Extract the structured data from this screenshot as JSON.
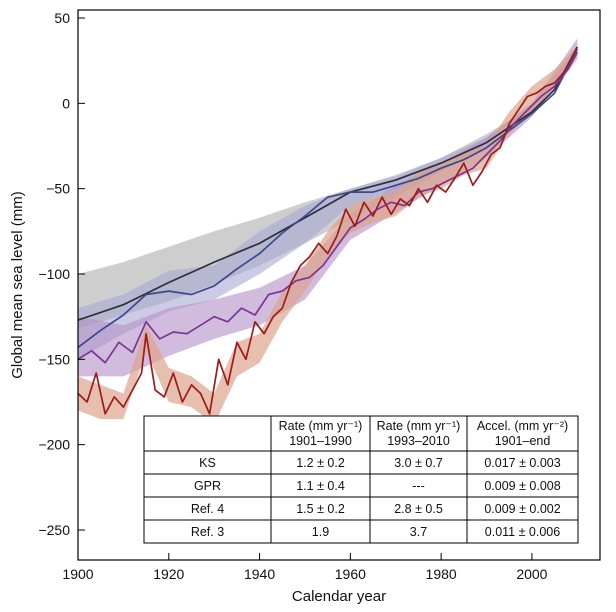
{
  "chart_data": {
    "type": "line",
    "title": "",
    "xlabel": "Calendar year",
    "ylabel": "Global mean sea level (mm)",
    "xlim": [
      1900,
      2015
    ],
    "ylim": [
      -270,
      50
    ],
    "xticks": [
      1900,
      1920,
      1940,
      1960,
      1980,
      2000
    ],
    "xtick_labels": [
      "1900",
      "1920",
      "1940",
      "1960",
      "1980",
      "2000"
    ],
    "yticks": [
      50,
      0,
      -50,
      -100,
      -150,
      -200,
      -250
    ],
    "ytick_labels": [
      "50",
      "0",
      "−50",
      "−100",
      "−150",
      "−200",
      "−250"
    ],
    "colors": {
      "gray_band": "#bdbdbd",
      "blue_band": "#a9a9d6",
      "purple_band": "#b48fc6",
      "red_band": "#dca48c",
      "black_line": "#2f2f3a",
      "blue_line": "#3b4a8c",
      "purple_line": "#7a3597",
      "red_line": "#9e1b1b",
      "frame": "#000000"
    },
    "series": [
      {
        "name": "Ref. 3 (gray band)",
        "x": [
          1900,
          1910,
          1920,
          1930,
          1940,
          1950,
          1960,
          1970,
          1980,
          1990,
          2000,
          2010
        ],
        "upper": [
          -100,
          -93,
          -84,
          -75,
          -67,
          -58,
          -50,
          -43,
          -32,
          -18,
          -2,
          32
        ],
        "lower": [
          -132,
          -124,
          -116,
          -106,
          -95,
          -82,
          -68,
          -55,
          -40,
          -24,
          -6,
          28
        ]
      },
      {
        "name": "Ref. 4 (blue band)",
        "x": [
          1900,
          1910,
          1920,
          1930,
          1940,
          1950,
          1960,
          1970,
          1980,
          1990,
          2000,
          2010
        ],
        "upper": [
          -120,
          -112,
          -98,
          -95,
          -75,
          -60,
          -50,
          -42,
          -32,
          -20,
          0,
          34
        ],
        "lower": [
          -150,
          -135,
          -122,
          -115,
          -100,
          -82,
          -60,
          -50,
          -40,
          -26,
          -6,
          28
        ]
      },
      {
        "name": "GPR (purple band)",
        "x": [
          1900,
          1910,
          1920,
          1930,
          1940,
          1950,
          1960,
          1970,
          1980,
          1990,
          2000,
          2010
        ],
        "upper": [
          -125,
          -130,
          -120,
          -115,
          -108,
          -95,
          -65,
          -48,
          -35,
          -20,
          0,
          38
        ],
        "lower": [
          -160,
          -160,
          -148,
          -138,
          -130,
          -115,
          -80,
          -64,
          -48,
          -32,
          -8,
          26
        ]
      },
      {
        "name": "KS (red band)",
        "x": [
          1900,
          1905,
          1910,
          1915,
          1920,
          1925,
          1930,
          1935,
          1940,
          1945,
          1950,
          1955,
          1960,
          1965,
          1970,
          1975,
          1980,
          1985,
          1990,
          1995,
          2000,
          2005,
          2010
        ],
        "upper": [
          -160,
          -165,
          -170,
          -130,
          -155,
          -160,
          -170,
          -140,
          -135,
          -110,
          -95,
          -75,
          -60,
          -55,
          -52,
          -40,
          -35,
          -28,
          -25,
          -5,
          10,
          20,
          34
        ],
        "lower": [
          -180,
          -185,
          -185,
          -145,
          -175,
          -178,
          -188,
          -160,
          -152,
          -128,
          -110,
          -90,
          -76,
          -70,
          -66,
          -55,
          -50,
          -42,
          -38,
          -18,
          -5,
          8,
          28
        ]
      },
      {
        "name": "Ref. 3 (black line)",
        "x": [
          1900,
          1910,
          1920,
          1930,
          1940,
          1950,
          1960,
          1970,
          1980,
          1990,
          2000,
          2005,
          2010
        ],
        "y": [
          -127,
          -118,
          -105,
          -93,
          -82,
          -67,
          -52,
          -45,
          -35,
          -23,
          -5,
          8,
          33
        ]
      },
      {
        "name": "Ref. 4 (blue line)",
        "x": [
          1900,
          1905,
          1910,
          1915,
          1920,
          1925,
          1930,
          1935,
          1940,
          1945,
          1950,
          1955,
          1960,
          1965,
          1970,
          1975,
          1980,
          1985,
          1990,
          1995,
          2000,
          2005,
          2010
        ],
        "y": [
          -143,
          -133,
          -124,
          -112,
          -110,
          -112,
          -107,
          -97,
          -88,
          -76,
          -66,
          -55,
          -52,
          -52,
          -48,
          -44,
          -38,
          -33,
          -26,
          -16,
          -6,
          6,
          32
        ]
      },
      {
        "name": "GPR (purple line)",
        "x": [
          1900,
          1903,
          1906,
          1909,
          1912,
          1915,
          1918,
          1921,
          1924,
          1927,
          1930,
          1933,
          1936,
          1939,
          1942,
          1945,
          1948,
          1951,
          1954,
          1957,
          1960,
          1963,
          1966,
          1969,
          1972,
          1975,
          1978,
          1981,
          1984,
          1987,
          1990,
          1993,
          1996,
          1999,
          2002,
          2005,
          2008,
          2010
        ],
        "y": [
          -150,
          -145,
          -152,
          -140,
          -146,
          -128,
          -138,
          -134,
          -135,
          -130,
          -125,
          -128,
          -120,
          -124,
          -112,
          -110,
          -104,
          -102,
          -95,
          -84,
          -73,
          -68,
          -62,
          -58,
          -60,
          -52,
          -50,
          -46,
          -42,
          -38,
          -30,
          -22,
          -12,
          -4,
          4,
          10,
          20,
          30
        ]
      },
      {
        "name": "KS (red line)",
        "x": [
          1900,
          1902,
          1904,
          1906,
          1908,
          1910,
          1912,
          1914,
          1915,
          1917,
          1919,
          1921,
          1923,
          1925,
          1927,
          1929,
          1931,
          1933,
          1935,
          1937,
          1939,
          1941,
          1943,
          1945,
          1947,
          1949,
          1951,
          1953,
          1955,
          1957,
          1959,
          1961,
          1963,
          1965,
          1967,
          1969,
          1971,
          1973,
          1975,
          1977,
          1979,
          1981,
          1983,
          1985,
          1987,
          1989,
          1991,
          1993,
          1995,
          1997,
          1999,
          2001,
          2003,
          2005,
          2007,
          2010
        ],
        "y": [
          -170,
          -175,
          -158,
          -182,
          -172,
          -178,
          -168,
          -158,
          -135,
          -168,
          -172,
          -158,
          -175,
          -165,
          -170,
          -182,
          -150,
          -165,
          -140,
          -150,
          -128,
          -135,
          -125,
          -120,
          -105,
          -95,
          -90,
          -82,
          -88,
          -78,
          -62,
          -72,
          -58,
          -66,
          -55,
          -65,
          -56,
          -60,
          -50,
          -58,
          -48,
          -52,
          -44,
          -35,
          -48,
          -40,
          -30,
          -26,
          -12,
          -4,
          4,
          6,
          10,
          12,
          18,
          33
        ]
      }
    ],
    "table": {
      "headers": [
        [
          "",
          ""
        ],
        [
          "Rate (mm yr⁻¹)",
          "1901–1990"
        ],
        [
          "Rate (mm yr⁻¹)",
          "1993–2010"
        ],
        [
          "Accel. (mm yr⁻²)",
          "1901–end"
        ]
      ],
      "rows": [
        [
          "KS",
          "1.2 ± 0.2",
          "3.0 ± 0.7",
          "0.017 ± 0.003"
        ],
        [
          "GPR",
          "1.1 ± 0.4",
          "---",
          "0.009 ± 0.008"
        ],
        [
          "Ref. 4",
          "1.5 ± 0.2",
          "2.8 ± 0.5",
          "0.009 ± 0.002"
        ],
        [
          "Ref. 3",
          "1.9",
          "3.7",
          "0.011 ± 0.006"
        ]
      ]
    }
  }
}
